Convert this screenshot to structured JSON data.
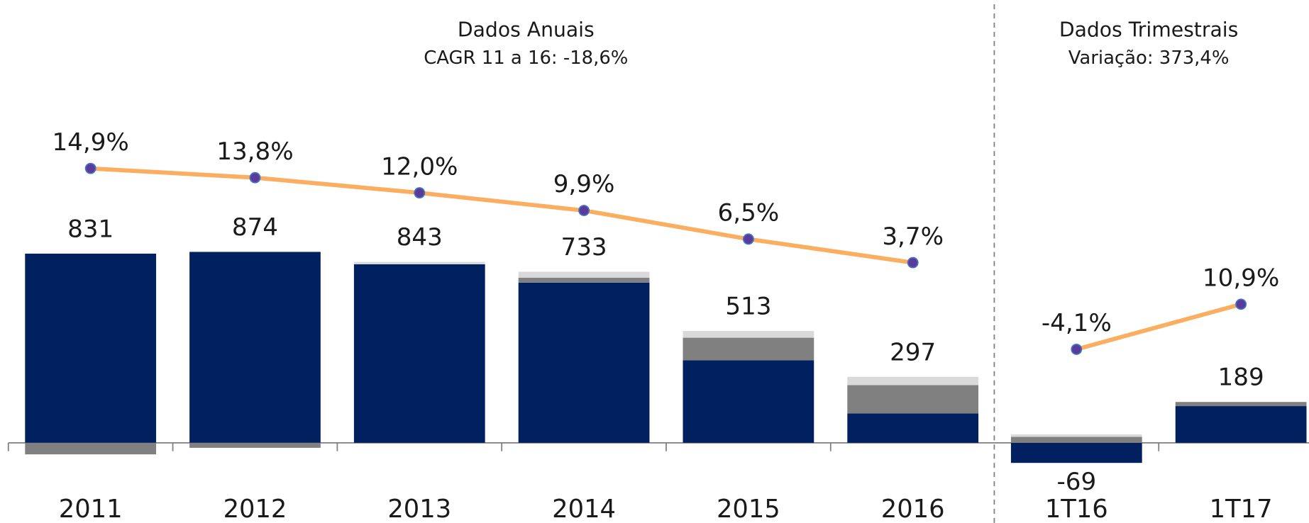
{
  "chart_data": [
    {
      "type": "bar",
      "title": "Dados Anuais",
      "subtitle": "CAGR 11 a 16: -18,6%",
      "categories": [
        "2011",
        "2012",
        "2013",
        "2014",
        "2015",
        "2016"
      ],
      "series": [
        {
          "color": "#002060",
          "values": [
            866,
            874,
            817,
            733,
            378,
            134
          ]
        },
        {
          "color": "#808080",
          "values": [
            -53,
            -23,
            0,
            23,
            103,
            130
          ]
        },
        {
          "color": "#d9d9d9",
          "values": [
            0,
            0,
            11,
            27,
            31,
            38
          ]
        },
        {
          "type": "line",
          "axis": "y2",
          "color": "#fbad60",
          "marker_color": "#5b3a9a",
          "values": [
            14.9,
            13.8,
            12.0,
            9.9,
            6.5,
            3.7
          ],
          "value_labels": [
            "14,9%",
            "13,8%",
            "12,0%",
            "9,9%",
            "6,5%",
            "3,7%"
          ]
        }
      ],
      "totals": [
        831,
        874,
        843,
        733,
        513,
        297
      ],
      "ylim": [
        -111,
        1645
      ],
      "y2lim": [
        -20.6,
        25
      ]
    },
    {
      "type": "bar",
      "title": "Dados Trimestrais",
      "subtitle": "Variação: 373,4%",
      "categories": [
        "1T16",
        "1T17"
      ],
      "series": [
        {
          "color": "#002060",
          "values": [
            -92,
            168
          ]
        },
        {
          "color": "#808080",
          "values": [
            27,
            19
          ]
        },
        {
          "color": "#d9d9d9",
          "values": [
            11,
            0
          ]
        },
        {
          "type": "line",
          "axis": "y2",
          "color": "#fbad60",
          "marker_color": "#5b3a9a",
          "values": [
            -4.1,
            10.9
          ],
          "value_labels": [
            "-4,1%",
            "10,9%"
          ]
        }
      ],
      "totals": [
        -69,
        189
      ],
      "ylim": [
        -111,
        1645
      ],
      "y2lim": [
        -43.3,
        84.4
      ]
    }
  ]
}
